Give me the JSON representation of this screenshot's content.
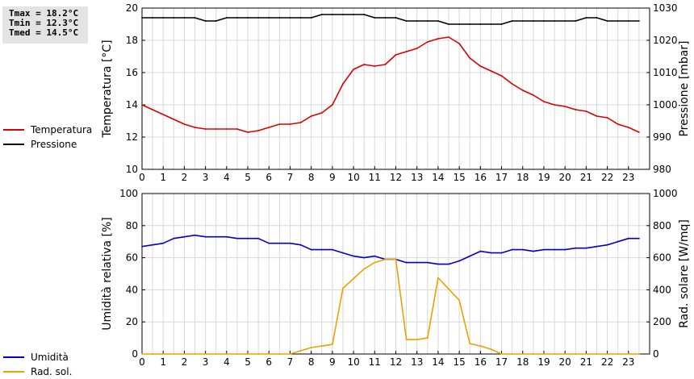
{
  "stats": {
    "tmax": "Tmax = 18.2°C",
    "tmin": "Tmin = 12.3°C",
    "tmed": "Tmed = 14.5°C"
  },
  "legend_top": [
    {
      "label": "Temperatura",
      "color": "#dd0000"
    },
    {
      "label": "Pressione",
      "color": "#000000"
    }
  ],
  "legend_bottom": [
    {
      "label": "Umidità",
      "color": "#0000cc"
    },
    {
      "label": "Rad. sol.",
      "color": "#f0a000"
    }
  ],
  "chart_data": [
    {
      "type": "line",
      "x": [
        0,
        0.5,
        1,
        1.5,
        2,
        2.5,
        3,
        3.5,
        4,
        4.5,
        5,
        5.5,
        6,
        6.5,
        7,
        7.5,
        8,
        8.5,
        9,
        9.5,
        10,
        10.5,
        11,
        11.5,
        12,
        12.5,
        13,
        13.5,
        14,
        14.5,
        15,
        15.5,
        16,
        16.5,
        17,
        17.5,
        18,
        18.5,
        19,
        19.5,
        20,
        20.5,
        21,
        21.5,
        22,
        22.5,
        23,
        23.5
      ],
      "xlim": [
        0,
        24
      ],
      "xticks": [
        0,
        1,
        2,
        3,
        4,
        5,
        6,
        7,
        8,
        9,
        10,
        11,
        12,
        13,
        14,
        15,
        16,
        17,
        18,
        19,
        20,
        21,
        22,
        23
      ],
      "ylabel": "Temperatura [°C]",
      "ylim": [
        10,
        20
      ],
      "yticks": [
        10,
        12,
        14,
        16,
        18,
        20
      ],
      "y2label": "Pressione [mbar]",
      "y2lim": [
        980,
        1030
      ],
      "y2ticks": [
        980,
        990,
        1000,
        1010,
        1020,
        1030
      ],
      "grid": true,
      "series": [
        {
          "name": "Temperatura",
          "axis": "left",
          "color": "#dd0000",
          "values": [
            14.0,
            13.7,
            13.4,
            13.1,
            12.8,
            12.6,
            12.5,
            12.5,
            12.5,
            12.5,
            12.3,
            12.4,
            12.6,
            12.8,
            12.8,
            12.9,
            13.3,
            13.5,
            14.0,
            15.3,
            16.2,
            16.5,
            16.4,
            16.5,
            17.1,
            17.3,
            17.5,
            17.9,
            18.1,
            18.2,
            17.8,
            16.9,
            16.4,
            16.1,
            15.8,
            15.3,
            14.9,
            14.6,
            14.2,
            14.0,
            13.9,
            13.7,
            13.6,
            13.3,
            13.2,
            12.8,
            12.6,
            12.3
          ]
        },
        {
          "name": "Pressione",
          "axis": "right",
          "color": "#000000",
          "values": [
            1027,
            1027,
            1027,
            1027,
            1027,
            1027,
            1026,
            1026,
            1027,
            1027,
            1027,
            1027,
            1027,
            1027,
            1027,
            1027,
            1027,
            1028,
            1028,
            1028,
            1028,
            1028,
            1027,
            1027,
            1027,
            1026,
            1026,
            1026,
            1026,
            1025,
            1025,
            1025,
            1025,
            1025,
            1025,
            1026,
            1026,
            1026,
            1026,
            1026,
            1026,
            1026,
            1027,
            1027,
            1026,
            1026,
            1026,
            1026
          ]
        }
      ]
    },
    {
      "type": "line",
      "x": [
        0,
        0.5,
        1,
        1.5,
        2,
        2.5,
        3,
        3.5,
        4,
        4.5,
        5,
        5.5,
        6,
        6.5,
        7,
        7.5,
        8,
        8.5,
        9,
        9.5,
        10,
        10.5,
        11,
        11.5,
        12,
        12.5,
        13,
        13.5,
        14,
        14.5,
        15,
        15.5,
        16,
        16.5,
        17,
        17.5,
        18,
        18.5,
        19,
        19.5,
        20,
        20.5,
        21,
        21.5,
        22,
        22.5,
        23,
        23.5
      ],
      "xlim": [
        0,
        24
      ],
      "xticks": [
        0,
        1,
        2,
        3,
        4,
        5,
        6,
        7,
        8,
        9,
        10,
        11,
        12,
        13,
        14,
        15,
        16,
        17,
        18,
        19,
        20,
        21,
        22,
        23
      ],
      "ylabel": "Umidità relativa [%]",
      "ylim": [
        0,
        100
      ],
      "yticks": [
        0,
        20,
        40,
        60,
        80,
        100
      ],
      "y2label": "Rad. solare [W/mq]",
      "y2lim": [
        0,
        1000
      ],
      "y2ticks": [
        0,
        200,
        400,
        600,
        800,
        1000
      ],
      "grid": true,
      "series": [
        {
          "name": "Umidità",
          "axis": "left",
          "color": "#0000cc",
          "values": [
            67,
            68,
            69,
            72,
            73,
            74,
            73,
            73,
            73,
            72,
            72,
            72,
            69,
            69,
            69,
            68,
            65,
            65,
            65,
            63,
            61,
            60,
            61,
            59,
            59,
            57,
            57,
            57,
            56,
            56,
            58,
            61,
            64,
            63,
            63,
            65,
            65,
            64,
            65,
            65,
            65,
            66,
            66,
            67,
            68,
            70,
            72,
            72
          ]
        },
        {
          "name": "Rad. sol.",
          "axis": "right",
          "color": "#f0a000",
          "values": [
            0,
            0,
            0,
            0,
            0,
            0,
            0,
            0,
            0,
            0,
            0,
            0,
            0,
            0,
            0,
            20,
            40,
            50,
            60,
            410,
            470,
            530,
            570,
            590,
            590,
            90,
            90,
            100,
            475,
            405,
            335,
            65,
            50,
            30,
            0,
            0,
            0,
            0,
            0,
            0,
            0,
            0,
            0,
            0,
            0,
            0,
            0,
            0
          ]
        }
      ]
    }
  ]
}
